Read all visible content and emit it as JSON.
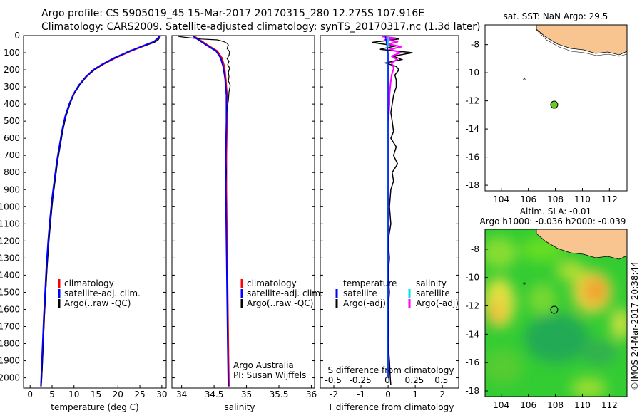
{
  "header": {
    "line1": "Argo profile: CS 5905019_45 15-Mar-2017 20170315_280 12.275S 107.916E",
    "line2": "Climatology: CARS2009. Satellite-adjusted climatology: synTS_20170317.nc (1.3d later)"
  },
  "colors": {
    "climatology": "#ff0000",
    "satellite": "#0000ff",
    "argo": "#000000",
    "sal_satellite": "#00e0e0",
    "sal_argo": "#ff00ff",
    "land": "#f8c490",
    "ssta_marker": "#66cc22"
  },
  "depth_axis": {
    "ticks": [
      "0",
      "100",
      "200",
      "300",
      "400",
      "500",
      "600",
      "700",
      "800",
      "900",
      "1000",
      "1100",
      "1200",
      "1300",
      "1400",
      "1500",
      "1600",
      "1700",
      "1800",
      "1900",
      "2000"
    ],
    "range": [
      0,
      2060
    ]
  },
  "chart_data": [
    {
      "type": "line",
      "id": "temperature",
      "xlabel": "temperature (deg C)",
      "xlim": [
        -1.5,
        31
      ],
      "xticks": [
        "0",
        "5",
        "10",
        "15",
        "20",
        "25",
        "30"
      ],
      "ylim": [
        2060,
        0
      ],
      "legend": [
        "climatology",
        "satellite-adj. clim.",
        "Argo(..raw -QC)"
      ],
      "series": [
        {
          "name": "climatology",
          "points": [
            [
              29.6,
              2
            ],
            [
              29.3,
              15
            ],
            [
              28.5,
              35
            ],
            [
              26.5,
              55
            ],
            [
              23,
              90
            ],
            [
              19.5,
              130
            ],
            [
              16.5,
              170
            ],
            [
              14.6,
              200
            ],
            [
              12.8,
              240
            ],
            [
              11.2,
              290
            ],
            [
              10,
              340
            ],
            [
              9,
              400
            ],
            [
              8.1,
              470
            ],
            [
              7.4,
              550
            ],
            [
              6.8,
              640
            ],
            [
              6.2,
              730
            ],
            [
              5.7,
              830
            ],
            [
              5.1,
              950
            ],
            [
              4.6,
              1080
            ],
            [
              4.2,
              1200
            ],
            [
              3.8,
              1350
            ],
            [
              3.5,
              1500
            ],
            [
              3.2,
              1650
            ],
            [
              2.95,
              1800
            ],
            [
              2.7,
              1950
            ],
            [
              2.5,
              2050
            ]
          ]
        },
        {
          "name": "satellite-adj. clim.",
          "points": [
            [
              29.4,
              2
            ],
            [
              29.1,
              15
            ],
            [
              28.2,
              35
            ],
            [
              26.2,
              55
            ],
            [
              22.8,
              90
            ],
            [
              19.2,
              130
            ],
            [
              16.3,
              170
            ],
            [
              14.4,
              200
            ],
            [
              12.7,
              240
            ],
            [
              11.1,
              290
            ],
            [
              9.9,
              340
            ],
            [
              8.9,
              400
            ],
            [
              8,
              470
            ],
            [
              7.3,
              550
            ],
            [
              6.7,
              640
            ],
            [
              6.1,
              730
            ],
            [
              5.6,
              830
            ],
            [
              5,
              950
            ],
            [
              4.5,
              1080
            ],
            [
              4.1,
              1200
            ],
            [
              3.7,
              1350
            ],
            [
              3.4,
              1500
            ],
            [
              3.1,
              1650
            ],
            [
              2.85,
              1800
            ],
            [
              2.6,
              1950
            ],
            [
              2.45,
              2050
            ]
          ]
        },
        {
          "name": "Argo(..raw -QC)",
          "points": [
            [
              29.7,
              5
            ],
            [
              29.2,
              25
            ],
            [
              28.3,
              40
            ],
            [
              26,
              60
            ],
            [
              22.5,
              90
            ],
            [
              19.8,
              125
            ],
            [
              16.8,
              165
            ],
            [
              14.9,
              195
            ],
            [
              13,
              235
            ],
            [
              11.3,
              290
            ],
            [
              10,
              340
            ],
            [
              9.1,
              400
            ],
            [
              8.2,
              470
            ],
            [
              7.5,
              550
            ],
            [
              6.9,
              640
            ],
            [
              6.3,
              730
            ],
            [
              5.8,
              830
            ],
            [
              5.2,
              950
            ],
            [
              4.7,
              1080
            ],
            [
              4.3,
              1200
            ],
            [
              3.9,
              1350
            ],
            [
              3.55,
              1500
            ],
            [
              3.25,
              1650
            ],
            [
              3,
              1800
            ],
            [
              2.75,
              1950
            ],
            [
              2.6,
              2030
            ]
          ]
        }
      ]
    },
    {
      "type": "line",
      "id": "salinity",
      "xlabel": "salinity",
      "xlim": [
        33.85,
        36.05
      ],
      "xticks": [
        "34",
        "34.5",
        "35",
        "35.5",
        "36"
      ],
      "ylim": [
        2060,
        0
      ],
      "legend": [
        "climatology",
        "satellite-adj. clim.",
        "Argo(..raw -QC)"
      ],
      "annotations": [
        "Argo Australia",
        "PI: Susan Wijffels"
      ],
      "series": [
        {
          "name": "climatology",
          "points": [
            [
              34.2,
              5
            ],
            [
              34.3,
              30
            ],
            [
              34.42,
              60
            ],
            [
              34.55,
              90
            ],
            [
              34.62,
              130
            ],
            [
              34.66,
              180
            ],
            [
              34.68,
              250
            ],
            [
              34.7,
              350
            ],
            [
              34.7,
              500
            ],
            [
              34.69,
              700
            ],
            [
              34.69,
              900
            ],
            [
              34.7,
              1200
            ],
            [
              34.71,
              1500
            ],
            [
              34.72,
              1800
            ],
            [
              34.73,
              2050
            ]
          ]
        },
        {
          "name": "satellite-adj. clim.",
          "points": [
            [
              34.18,
              5
            ],
            [
              34.28,
              30
            ],
            [
              34.4,
              60
            ],
            [
              34.53,
              90
            ],
            [
              34.6,
              130
            ],
            [
              34.64,
              180
            ],
            [
              34.67,
              250
            ],
            [
              34.69,
              350
            ],
            [
              34.69,
              500
            ],
            [
              34.68,
              700
            ],
            [
              34.68,
              900
            ],
            [
              34.69,
              1200
            ],
            [
              34.7,
              1500
            ],
            [
              34.71,
              1800
            ],
            [
              34.72,
              2050
            ]
          ]
        },
        {
          "name": "Argo(..raw -QC)",
          "points": [
            [
              33.95,
              5
            ],
            [
              34.05,
              10
            ],
            [
              34.3,
              20
            ],
            [
              34.55,
              25
            ],
            [
              34.65,
              35
            ],
            [
              34.7,
              45
            ],
            [
              34.72,
              55
            ],
            [
              34.7,
              75
            ],
            [
              34.74,
              95
            ],
            [
              34.73,
              115
            ],
            [
              34.7,
              135
            ],
            [
              34.73,
              150
            ],
            [
              34.71,
              170
            ],
            [
              34.74,
              190
            ],
            [
              34.72,
              215
            ],
            [
              34.73,
              240
            ],
            [
              34.72,
              265
            ],
            [
              34.75,
              290
            ],
            [
              34.73,
              330
            ],
            [
              34.72,
              380
            ],
            [
              34.7,
              430
            ],
            [
              34.69,
              500
            ],
            [
              34.69,
              600
            ],
            [
              34.68,
              700
            ],
            [
              34.69,
              800
            ],
            [
              34.68,
              900
            ],
            [
              34.69,
              1000
            ]
          ]
        }
      ]
    },
    {
      "type": "line",
      "id": "difference",
      "xlabel": "T difference from climatology",
      "xlabel2": "S difference from climatology",
      "xlim": [
        -2.5,
        2.6
      ],
      "xticks": [
        "-2",
        "-1",
        "0",
        "1",
        "2"
      ],
      "xticks2": [
        "-0.5",
        "-0.25",
        "0",
        "0.25",
        "0.5"
      ],
      "xlim2": [
        -0.62,
        0.66
      ],
      "ylim": [
        2060,
        0
      ],
      "legend": {
        "temperature": "temperature",
        "salinity": "salinity",
        "satellite": "satellite",
        "argo": "Argo(-adj)"
      },
      "series": [
        {
          "name": "temperature satellite",
          "points": [
            [
              -0.1,
              5
            ],
            [
              0,
              100
            ],
            [
              0,
              500
            ],
            [
              0,
              1000
            ],
            [
              0,
              1500
            ],
            [
              0,
              2000
            ]
          ]
        },
        {
          "name": "temperature Argo(-adj)",
          "points": [
            [
              -0.2,
              5
            ],
            [
              0.4,
              20
            ],
            [
              -0.6,
              40
            ],
            [
              0.3,
              60
            ],
            [
              -0.3,
              80
            ],
            [
              0.9,
              100
            ],
            [
              0.2,
              120
            ],
            [
              0.5,
              140
            ],
            [
              -0.1,
              160
            ],
            [
              0.3,
              180
            ],
            [
              0.4,
              200
            ],
            [
              0.25,
              230
            ],
            [
              0.3,
              260
            ],
            [
              0.3,
              300
            ],
            [
              0.2,
              350
            ],
            [
              0.15,
              400
            ],
            [
              0.1,
              450
            ],
            [
              0.15,
              500
            ],
            [
              0.2,
              560
            ],
            [
              0.1,
              600
            ],
            [
              0.3,
              650
            ],
            [
              0.2,
              700
            ],
            [
              0.35,
              750
            ],
            [
              0.15,
              800
            ],
            [
              0.2,
              850
            ],
            [
              0.1,
              900
            ],
            [
              0.05,
              1000
            ],
            [
              0.1,
              1100
            ],
            [
              0,
              1200
            ],
            [
              0.05,
              1300
            ],
            [
              0,
              1400
            ],
            [
              0.05,
              1500
            ],
            [
              0,
              1600
            ],
            [
              0.02,
              1700
            ],
            [
              0,
              1800
            ],
            [
              0.05,
              1900
            ],
            [
              0.08,
              2000
            ],
            [
              0.1,
              2040
            ]
          ]
        },
        {
          "name": "salinity satellite",
          "points": [
            [
              0.01,
              5
            ],
            [
              0,
              100
            ],
            [
              0,
              500
            ],
            [
              0,
              1000
            ],
            [
              0,
              1500
            ],
            [
              0,
              2000
            ]
          ]
        },
        {
          "name": "salinity Argo(-adj)",
          "points": [
            [
              -0.05,
              5
            ],
            [
              0.08,
              15
            ],
            [
              -0.03,
              25
            ],
            [
              0.1,
              35
            ],
            [
              0.01,
              50
            ],
            [
              0.13,
              65
            ],
            [
              0.03,
              80
            ],
            [
              0.12,
              100
            ],
            [
              0.04,
              120
            ],
            [
              0.09,
              140
            ],
            [
              0.04,
              160
            ],
            [
              0.06,
              190
            ],
            [
              0.04,
              230
            ],
            [
              0.03,
              280
            ],
            [
              0.02,
              350
            ],
            [
              0.02,
              400
            ],
            [
              0.01,
              500
            ]
          ]
        }
      ]
    }
  ],
  "maps": [
    {
      "id": "sst-map",
      "title": "sat. SST: NaN Argo: 29.5",
      "xticks": [
        "104",
        "106",
        "108",
        "110",
        "112"
      ],
      "yticks": [
        "-8",
        "-10",
        "-12",
        "-14",
        "-16",
        "-18"
      ],
      "lon_range": [
        102.8,
        113.3
      ],
      "lat_range": [
        -18.4,
        -6.6
      ],
      "argo_marker": {
        "lon": 107.916,
        "lat": -12.275
      },
      "small_marker": {
        "lon": 105.7,
        "lat": -10.45
      }
    },
    {
      "id": "sla-map",
      "title1": "Altim. SLA: -0.01",
      "title2": "Argo h1000: -0.036 h2000: -0.039",
      "xticks": [
        "104",
        "106",
        "108",
        "110",
        "112"
      ],
      "yticks": [
        "-8",
        "-10",
        "-12",
        "-14",
        "-16",
        "-18"
      ],
      "lon_range": [
        102.8,
        113.3
      ],
      "lat_range": [
        -18.4,
        -6.6
      ],
      "argo_marker": {
        "lon": 107.916,
        "lat": -12.275
      },
      "small_marker": {
        "lon": 105.7,
        "lat": -10.45
      }
    }
  ],
  "side_label": "©IMOS 24-Mar-2017 20:38:44"
}
